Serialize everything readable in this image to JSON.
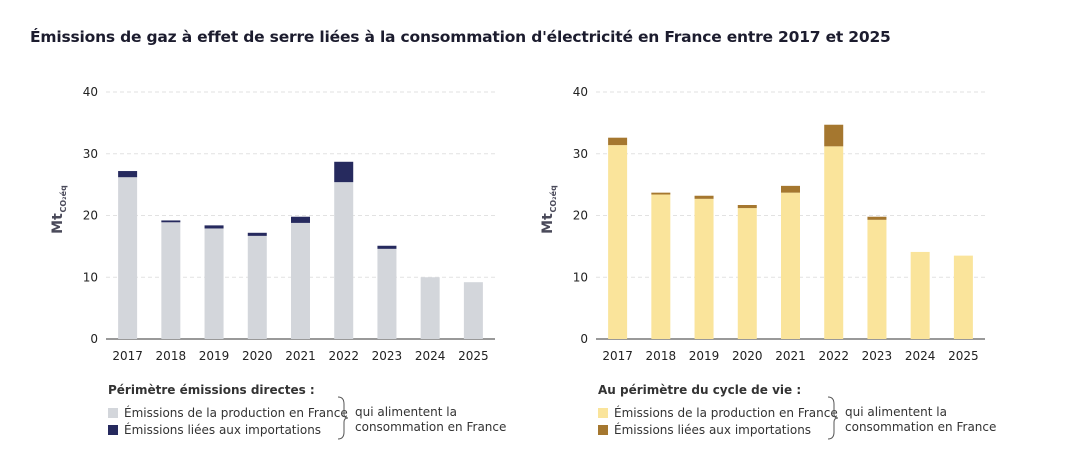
{
  "page": {
    "title": "Émissions de gaz à effet de serre liées à la consommation d'électricité en France entre 2017 et 2025"
  },
  "chart_data": [
    {
      "type": "bar",
      "stacked": true,
      "categories": [
        "2017",
        "2018",
        "2019",
        "2020",
        "2021",
        "2022",
        "2023",
        "2024",
        "2025"
      ],
      "series": [
        {
          "name": "Émissions de la production en France",
          "values": [
            26.2,
            18.9,
            17.9,
            16.7,
            18.8,
            25.4,
            14.6,
            10.0,
            9.2
          ],
          "color": "#d3d6db"
        },
        {
          "name": "Émissions liées aux importations",
          "values": [
            1.0,
            0.3,
            0.5,
            0.5,
            1.0,
            3.3,
            0.5,
            0,
            0
          ],
          "color": "#262a5e"
        }
      ],
      "ylabel": "Mt",
      "ylabel_sub": "CO₂éq",
      "yticks": [
        0,
        10,
        20,
        30,
        40
      ],
      "ylim": [
        0,
        40
      ],
      "grid": true,
      "legend": {
        "title": "Périmètre émissions directes :",
        "items": [
          "Émissions de la production en France",
          "Émissions liées aux importations"
        ],
        "note": "qui alimentent la consommation en France"
      }
    },
    {
      "type": "bar",
      "stacked": true,
      "categories": [
        "2017",
        "2018",
        "2019",
        "2020",
        "2021",
        "2022",
        "2023",
        "2024",
        "2025"
      ],
      "series": [
        {
          "name": "Émissions de la production en France",
          "values": [
            31.4,
            23.4,
            22.7,
            21.2,
            23.7,
            31.2,
            19.3,
            14.1,
            13.5
          ],
          "color": "#fae49b"
        },
        {
          "name": "Émissions liées aux importations",
          "values": [
            1.2,
            0.3,
            0.5,
            0.5,
            1.1,
            3.5,
            0.5,
            0,
            0
          ],
          "color": "#a5772f"
        }
      ],
      "ylabel": "Mt",
      "ylabel_sub": "CO₂éq",
      "yticks": [
        0,
        10,
        20,
        30,
        40
      ],
      "ylim": [
        0,
        40
      ],
      "grid": true,
      "legend": {
        "title": "Au périmètre du cycle de vie :",
        "items": [
          "Émissions de la production en France",
          "Émissions liées aux importations"
        ],
        "note": "qui alimentent la consommation en France"
      }
    }
  ]
}
